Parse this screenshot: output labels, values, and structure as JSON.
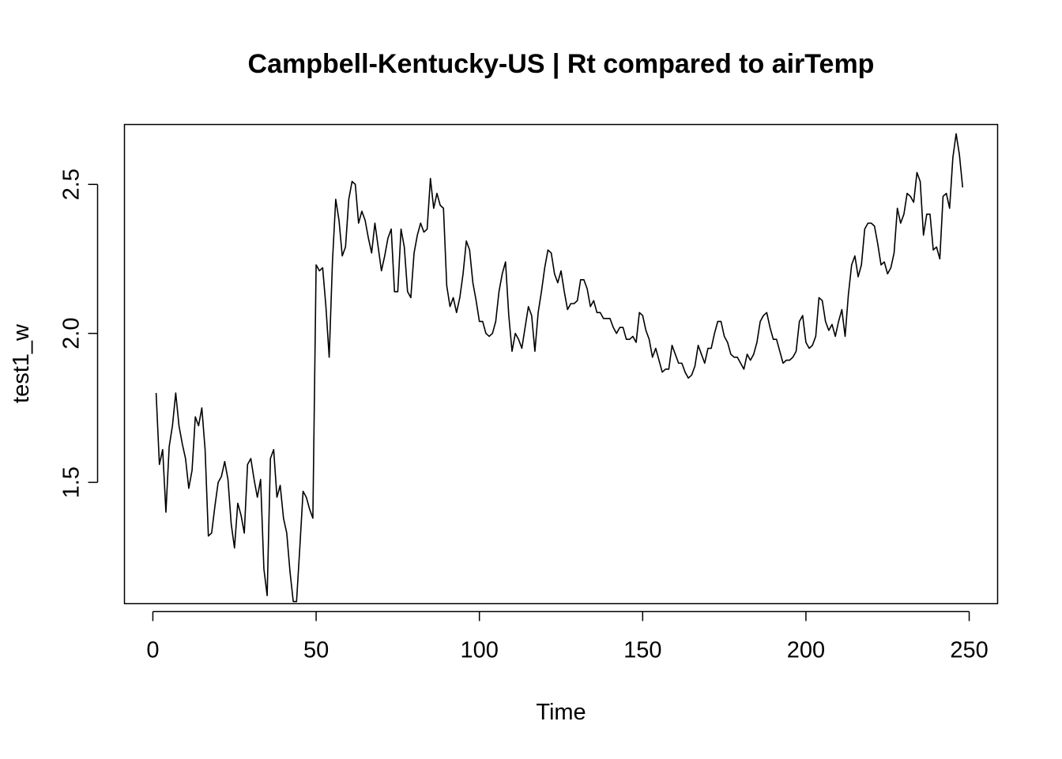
{
  "chart_data": {
    "type": "line",
    "title": "Campbell-Kentucky-US | Rt compared to airTemp",
    "xlabel": "Time",
    "ylabel": "test1_w",
    "xlim": [
      -8.7,
      258.7
    ],
    "ylim": [
      1.093,
      2.701
    ],
    "xticks": [
      0,
      50,
      100,
      150,
      200,
      250
    ],
    "yticks": [
      1.5,
      2.0,
      2.5
    ],
    "ytick_labels": [
      "1.5",
      "2.0",
      "2.5"
    ],
    "grid": false,
    "series": [
      {
        "x_start": 1,
        "values": [
          1.8,
          1.56,
          1.61,
          1.4,
          1.62,
          1.69,
          1.8,
          1.69,
          1.63,
          1.58,
          1.48,
          1.54,
          1.72,
          1.69,
          1.75,
          1.61,
          1.32,
          1.33,
          1.42,
          1.5,
          1.52,
          1.57,
          1.51,
          1.36,
          1.28,
          1.43,
          1.39,
          1.33,
          1.56,
          1.58,
          1.51,
          1.45,
          1.51,
          1.21,
          1.12,
          1.58,
          1.61,
          1.45,
          1.49,
          1.38,
          1.33,
          1.2,
          1.1,
          1.1,
          1.28,
          1.47,
          1.45,
          1.41,
          1.38,
          2.23,
          2.21,
          2.22,
          2.09,
          1.92,
          2.24,
          2.45,
          2.38,
          2.26,
          2.29,
          2.45,
          2.51,
          2.5,
          2.37,
          2.41,
          2.38,
          2.32,
          2.27,
          2.37,
          2.29,
          2.21,
          2.26,
          2.32,
          2.35,
          2.14,
          2.14,
          2.35,
          2.29,
          2.14,
          2.12,
          2.27,
          2.33,
          2.37,
          2.34,
          2.35,
          2.52,
          2.42,
          2.47,
          2.43,
          2.42,
          2.16,
          2.09,
          2.12,
          2.07,
          2.12,
          2.2,
          2.31,
          2.28,
          2.17,
          2.11,
          2.04,
          2.04,
          2.0,
          1.99,
          2.0,
          2.04,
          2.14,
          2.2,
          2.24,
          2.06,
          1.94,
          2.0,
          1.98,
          1.95,
          2.02,
          2.09,
          2.06,
          1.94,
          2.07,
          2.14,
          2.22,
          2.28,
          2.27,
          2.2,
          2.17,
          2.21,
          2.14,
          2.08,
          2.1,
          2.1,
          2.11,
          2.18,
          2.18,
          2.15,
          2.09,
          2.11,
          2.07,
          2.07,
          2.05,
          2.05,
          2.05,
          2.02,
          2.0,
          2.02,
          2.02,
          1.98,
          1.98,
          1.99,
          1.97,
          2.07,
          2.06,
          2.01,
          1.98,
          1.92,
          1.95,
          1.91,
          1.87,
          1.88,
          1.88,
          1.96,
          1.93,
          1.9,
          1.9,
          1.87,
          1.85,
          1.86,
          1.89,
          1.96,
          1.93,
          1.9,
          1.95,
          1.95,
          2.0,
          2.04,
          2.04,
          1.99,
          1.97,
          1.93,
          1.92,
          1.92,
          1.9,
          1.88,
          1.93,
          1.91,
          1.93,
          1.97,
          2.04,
          2.06,
          2.07,
          2.02,
          1.98,
          1.98,
          1.94,
          1.9,
          1.91,
          1.91,
          1.92,
          1.94,
          2.04,
          2.06,
          1.97,
          1.95,
          1.96,
          1.99,
          2.12,
          2.11,
          2.04,
          2.01,
          2.03,
          1.99,
          2.04,
          2.08,
          1.99,
          2.13,
          2.23,
          2.26,
          2.19,
          2.23,
          2.35,
          2.37,
          2.37,
          2.36,
          2.3,
          2.23,
          2.24,
          2.2,
          2.22,
          2.27,
          2.42,
          2.37,
          2.4,
          2.47,
          2.46,
          2.44,
          2.54,
          2.51,
          2.33,
          2.4,
          2.4,
          2.28,
          2.29,
          2.25,
          2.46,
          2.47,
          2.42,
          2.59,
          2.67,
          2.6,
          2.49
        ]
      }
    ]
  }
}
